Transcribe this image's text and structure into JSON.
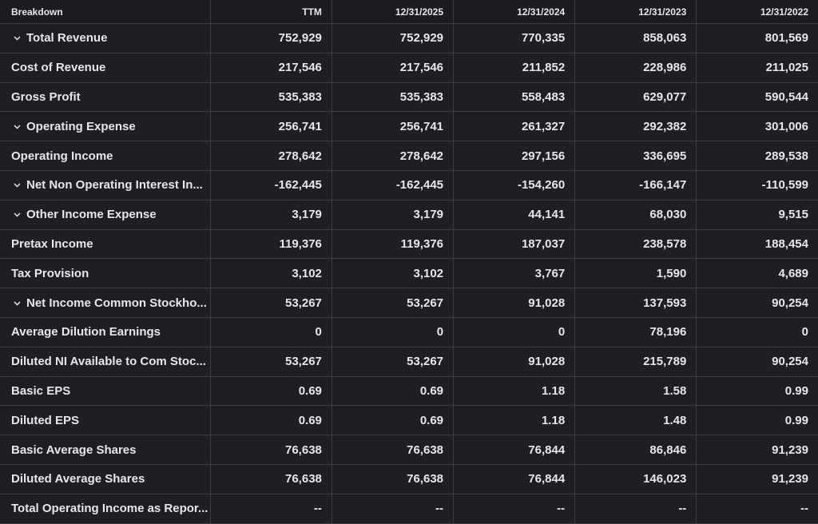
{
  "table": {
    "header": [
      "Breakdown",
      "TTM",
      "12/31/2025",
      "12/31/2024",
      "12/31/2023",
      "12/31/2022"
    ],
    "rows": [
      [
        "Total Revenue",
        "752,929",
        "752,929",
        "770,335",
        "858,063",
        "801,569"
      ],
      [
        "Cost of Revenue",
        "217,546",
        "217,546",
        "211,852",
        "228,986",
        "211,025"
      ],
      [
        "Gross Profit",
        "535,383",
        "535,383",
        "558,483",
        "629,077",
        "590,544"
      ],
      [
        "Operating Expense",
        "256,741",
        "256,741",
        "261,327",
        "292,382",
        "301,006"
      ],
      [
        "Operating Income",
        "278,642",
        "278,642",
        "297,156",
        "336,695",
        "289,538"
      ],
      [
        "Net Non Operating Interest In...",
        "-162,445",
        "-162,445",
        "-154,260",
        "-166,147",
        "-110,599"
      ],
      [
        "Other Income Expense",
        "3,179",
        "3,179",
        "44,141",
        "68,030",
        "9,515"
      ],
      [
        "Pretax Income",
        "119,376",
        "119,376",
        "187,037",
        "238,578",
        "188,454"
      ],
      [
        "Tax Provision",
        "3,102",
        "3,102",
        "3,767",
        "1,590",
        "4,689"
      ],
      [
        "Net Income Common Stockho...",
        "53,267",
        "53,267",
        "91,028",
        "137,593",
        "90,254"
      ],
      [
        "Average Dilution Earnings",
        "0",
        "0",
        "0",
        "78,196",
        "0"
      ],
      [
        "Diluted NI Available to Com Stoc...",
        "53,267",
        "53,267",
        "91,028",
        "215,789",
        "90,254"
      ],
      [
        "Basic EPS",
        "0.69",
        "0.69",
        "1.18",
        "1.58",
        "0.99"
      ],
      [
        "Diluted EPS",
        "0.69",
        "0.69",
        "1.18",
        "1.48",
        "0.99"
      ],
      [
        "Basic Average Shares",
        "76,638",
        "76,638",
        "76,844",
        "86,846",
        "91,239"
      ],
      [
        "Diluted Average Shares",
        "76,638",
        "76,638",
        "76,844",
        "146,023",
        "91,239"
      ],
      [
        "Total Operating Income as Repor...",
        "--",
        "--",
        "--",
        "--",
        "--"
      ]
    ]
  }
}
